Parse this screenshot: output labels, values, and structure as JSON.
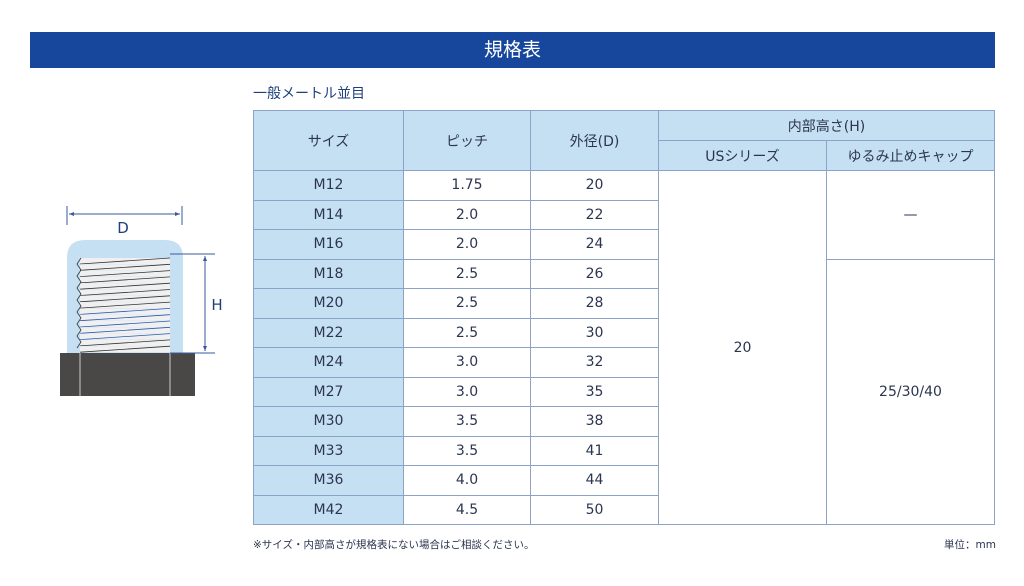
{
  "title": "規格表",
  "subtitle": "一般メートル並目",
  "headers": {
    "size": "サイズ",
    "pitch": "ピッチ",
    "od": "外径(D)",
    "height": "内部高さ(H)",
    "us": "USシリーズ",
    "lock": "ゆるみ止めキャップ"
  },
  "rows": [
    {
      "size": "M12",
      "pitch": "1.75",
      "od": "20"
    },
    {
      "size": "M14",
      "pitch": "2.0",
      "od": "22"
    },
    {
      "size": "M16",
      "pitch": "2.0",
      "od": "24"
    },
    {
      "size": "M18",
      "pitch": "2.5",
      "od": "26"
    },
    {
      "size": "M20",
      "pitch": "2.5",
      "od": "28"
    },
    {
      "size": "M22",
      "pitch": "2.5",
      "od": "30"
    },
    {
      "size": "M24",
      "pitch": "3.0",
      "od": "32"
    },
    {
      "size": "M27",
      "pitch": "3.0",
      "od": "35"
    },
    {
      "size": "M30",
      "pitch": "3.5",
      "od": "38"
    },
    {
      "size": "M33",
      "pitch": "3.5",
      "od": "41"
    },
    {
      "size": "M36",
      "pitch": "4.0",
      "od": "44"
    },
    {
      "size": "M42",
      "pitch": "4.5",
      "od": "50"
    }
  ],
  "us_value": "20",
  "lock_value_small": "—",
  "lock_value": "25/30/40",
  "note": "※サイズ・内部高さが規格表にない場合はご相談ください。",
  "unit": "単位：mm",
  "diagram": {
    "d_label": "D",
    "h_label": "H"
  }
}
